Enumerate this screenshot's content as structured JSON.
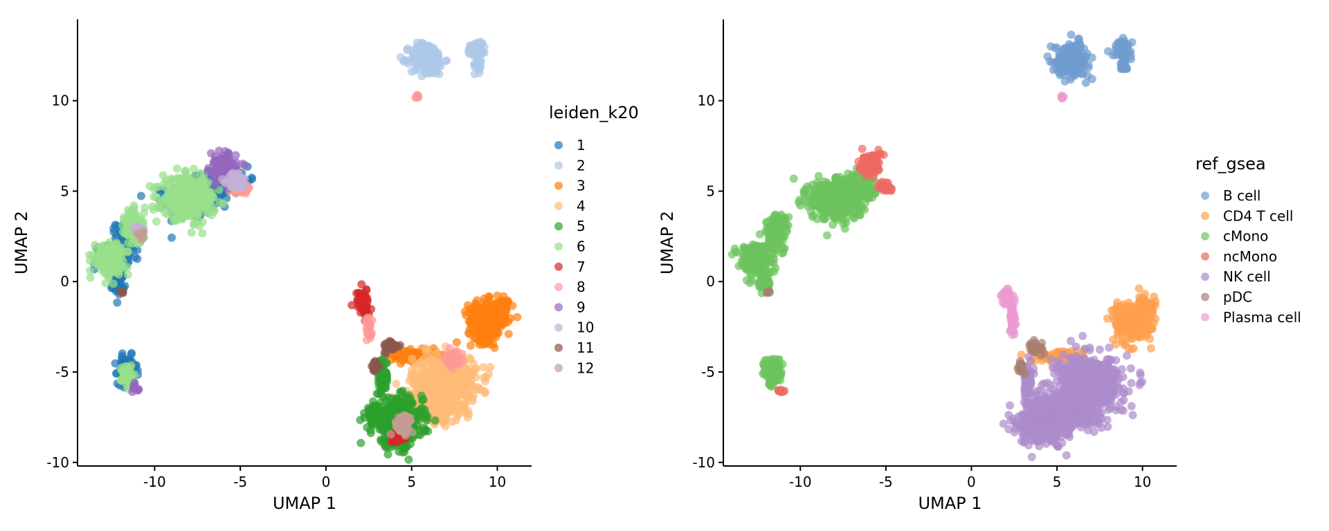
{
  "chart_data": [
    {
      "type": "scatter",
      "xlabel": "UMAP 1",
      "ylabel": "UMAP 2",
      "xlim": [
        -14.5,
        12
      ],
      "ylim": [
        -10.2,
        14.5
      ],
      "xticks": [
        -10,
        -5,
        0,
        5,
        10
      ],
      "yticks": [
        -10,
        -5,
        0,
        5,
        10
      ],
      "grid": false,
      "legend_title": "leiden_k20",
      "legend_position": "right",
      "series": [
        {
          "name": "1",
          "color": "#1f77b4",
          "points": [
            [
              -7.9,
              4.5,
              1.3,
              0.9
            ],
            [
              -6.8,
              5.3,
              1.0,
              0.6
            ],
            [
              -12.5,
              1.3,
              0.9,
              0.6
            ],
            [
              -12.1,
              -0.1,
              0.3,
              0.5
            ],
            [
              -11.6,
              2.5,
              0.6,
              0.7
            ],
            [
              -11.6,
              -4.9,
              0.5,
              0.7
            ],
            [
              -5.3,
              5.6,
              0.8,
              0.4
            ]
          ]
        },
        {
          "name": "2",
          "color": "#aec7e8",
          "points": [
            [
              5.9,
              12.3,
              0.9,
              0.8
            ],
            [
              8.8,
              12.9,
              0.5,
              0.4
            ],
            [
              8.9,
              12.0,
              0.2,
              0.4
            ]
          ]
        },
        {
          "name": "3",
          "color": "#ff7f0e",
          "points": [
            [
              9.4,
              -2.2,
              1.0,
              1.0
            ],
            [
              10.2,
              -1.4,
              0.5,
              0.4
            ],
            [
              5.2,
              -4.1,
              1.3,
              0.3
            ]
          ]
        },
        {
          "name": "4",
          "color": "#ffbb78",
          "points": [
            [
              6.9,
              -5.5,
              1.7,
              1.2
            ],
            [
              5.9,
              -7.0,
              1.7,
              0.7
            ]
          ]
        },
        {
          "name": "5",
          "color": "#2ca02c",
          "points": [
            [
              4.2,
              -7.8,
              1.3,
              1.2
            ],
            [
              2.8,
              -7.3,
              0.4,
              0.4
            ],
            [
              3.3,
              -5.3,
              0.3,
              0.9
            ]
          ]
        },
        {
          "name": "6",
          "color": "#98df8a",
          "points": [
            [
              -8.0,
              4.6,
              1.4,
              1.0
            ],
            [
              -12.7,
              1.3,
              0.8,
              0.8
            ],
            [
              -11.6,
              -5.2,
              0.3,
              0.6
            ],
            [
              -11.2,
              3.0,
              0.5,
              0.9
            ]
          ]
        },
        {
          "name": "7",
          "color": "#d62728",
          "points": [
            [
              2.1,
              -0.9,
              0.3,
              0.5
            ],
            [
              2.3,
              -1.6,
              0.2,
              0.4
            ],
            [
              4.2,
              -8.6,
              0.4,
              0.3
            ]
          ]
        },
        {
          "name": "8",
          "color": "#ff9896",
          "points": [
            [
              2.5,
              -2.6,
              0.2,
              0.6
            ],
            [
              -4.9,
              5.2,
              0.5,
              0.3
            ],
            [
              7.4,
              -4.3,
              0.5,
              0.4
            ],
            [
              5.3,
              10.2,
              0.1,
              0.1
            ]
          ]
        },
        {
          "name": "9",
          "color": "#9467bd",
          "points": [
            [
              -6.0,
              6.3,
              0.7,
              0.7
            ],
            [
              -11.1,
              -5.9,
              0.2,
              0.2
            ]
          ]
        },
        {
          "name": "10",
          "color": "#c5b0d5",
          "points": [
            [
              -5.2,
              5.6,
              0.5,
              0.4
            ],
            [
              -10.9,
              2.8,
              0.3,
              0.3
            ]
          ]
        },
        {
          "name": "11",
          "color": "#8c564b",
          "points": [
            [
              3.8,
              -3.6,
              0.4,
              0.3
            ],
            [
              2.9,
              -4.7,
              0.2,
              0.3
            ],
            [
              -11.9,
              -0.6,
              0.1,
              0.1
            ]
          ]
        },
        {
          "name": "12",
          "color": "#c49c94",
          "points": [
            [
              4.5,
              -7.9,
              0.5,
              0.5
            ],
            [
              -10.8,
              2.6,
              0.2,
              0.2
            ]
          ]
        }
      ]
    },
    {
      "type": "scatter",
      "xlabel": "UMAP 1",
      "ylabel": "UMAP 2",
      "xlim": [
        -14.5,
        12
      ],
      "ylim": [
        -10.2,
        14.5
      ],
      "xticks": [
        -10,
        -5,
        0,
        5,
        10
      ],
      "yticks": [
        -10,
        -5,
        0,
        5,
        10
      ],
      "grid": false,
      "legend_title": "ref_gsea",
      "legend_position": "right",
      "series": [
        {
          "name": "B cell",
          "color": "#6f9ccf",
          "points": [
            [
              5.9,
              12.3,
              0.9,
              0.8
            ],
            [
              8.8,
              12.9,
              0.5,
              0.4
            ],
            [
              8.9,
              12.0,
              0.2,
              0.4
            ]
          ]
        },
        {
          "name": "CD4 T cell",
          "color": "#ffa04e",
          "points": [
            [
              9.4,
              -2.2,
              1.0,
              1.0
            ],
            [
              10.2,
              -1.4,
              0.5,
              0.4
            ],
            [
              5.2,
              -4.1,
              1.3,
              0.3
            ]
          ]
        },
        {
          "name": "cMono",
          "color": "#6cc35e",
          "points": [
            [
              -7.9,
              4.5,
              1.4,
              1.0
            ],
            [
              -6.8,
              5.3,
              1.0,
              0.6
            ],
            [
              -12.6,
              1.3,
              0.9,
              0.8
            ],
            [
              -11.4,
              2.7,
              0.6,
              0.9
            ],
            [
              -11.6,
              -5.0,
              0.5,
              0.7
            ],
            [
              -12.1,
              -0.1,
              0.3,
              0.5
            ]
          ]
        },
        {
          "name": "ncMono",
          "color": "#ec6a62",
          "points": [
            [
              -5.9,
              6.5,
              0.6,
              0.6
            ],
            [
              -11.1,
              -6.0,
              0.2,
              0.2
            ],
            [
              -5.0,
              5.2,
              0.4,
              0.3
            ]
          ]
        },
        {
          "name": "NK cell",
          "color": "#ad8ccc",
          "points": [
            [
              6.9,
              -5.5,
              1.7,
              1.2
            ],
            [
              5.5,
              -7.2,
              1.9,
              0.9
            ],
            [
              4.2,
              -7.9,
              1.3,
              1.0
            ],
            [
              3.3,
              -5.3,
              0.3,
              0.9
            ]
          ]
        },
        {
          "name": "pDC",
          "color": "#a87f73",
          "points": [
            [
              3.8,
              -3.6,
              0.4,
              0.3
            ],
            [
              2.9,
              -4.7,
              0.2,
              0.3
            ],
            [
              -11.9,
              -0.6,
              0.1,
              0.1
            ]
          ]
        },
        {
          "name": "Plasma cell",
          "color": "#ec9ad0",
          "points": [
            [
              2.1,
              -0.9,
              0.3,
              0.5
            ],
            [
              2.4,
              -2.2,
              0.2,
              0.8
            ],
            [
              5.3,
              10.2,
              0.1,
              0.1
            ]
          ]
        }
      ]
    }
  ]
}
